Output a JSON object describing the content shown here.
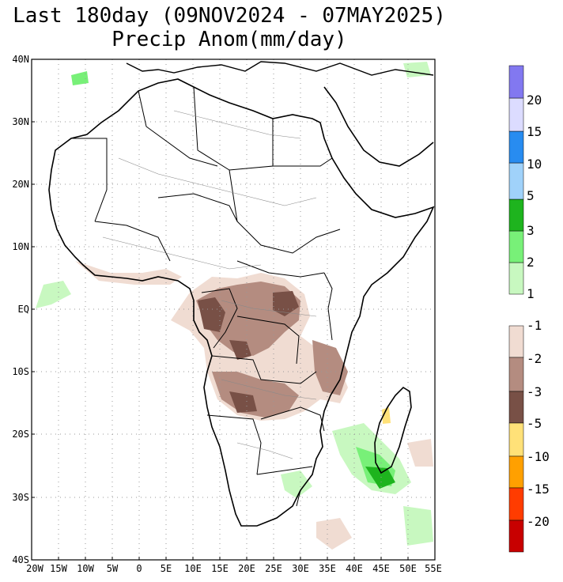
{
  "title": {
    "line1": "Last 180day (09NOV2024 - 07MAY2025)",
    "line2": "Precip Anom(mm/day)"
  },
  "map": {
    "lat_labels": [
      "40N",
      "30N",
      "20N",
      "10N",
      "EQ",
      "10S",
      "20S",
      "30S",
      "40S"
    ],
    "lon_labels": [
      "20W",
      "15W",
      "10W",
      "5W",
      "0",
      "5E",
      "10E",
      "15E",
      "20E",
      "25E",
      "30E",
      "35E",
      "40E",
      "45E",
      "50E",
      "55E"
    ]
  },
  "colorbar_wet": {
    "colors": [
      "#c8f8c0",
      "#78f078",
      "#1eb41e",
      "#a0d2fa",
      "#288cf0",
      "#dcdcff",
      "#8278f0"
    ],
    "labels": [
      "1",
      "2",
      "3",
      "5",
      "10",
      "15",
      "20"
    ]
  },
  "colorbar_dry": {
    "colors": [
      "#f0dcd2",
      "#b48c80",
      "#785046",
      "#ffe178",
      "#ffa000",
      "#ff3c00",
      "#c80000"
    ],
    "labels": [
      "-1",
      "-2",
      "-3",
      "-5",
      "-10",
      "-15",
      "-20"
    ]
  },
  "colors": {
    "wet_light": "#c8f8c0",
    "wet_mid": "#78f078",
    "wet_strong": "#1eb41e",
    "dry_light": "#f0dcd2",
    "dry_mid": "#b48c80",
    "dry_strong": "#785046"
  }
}
